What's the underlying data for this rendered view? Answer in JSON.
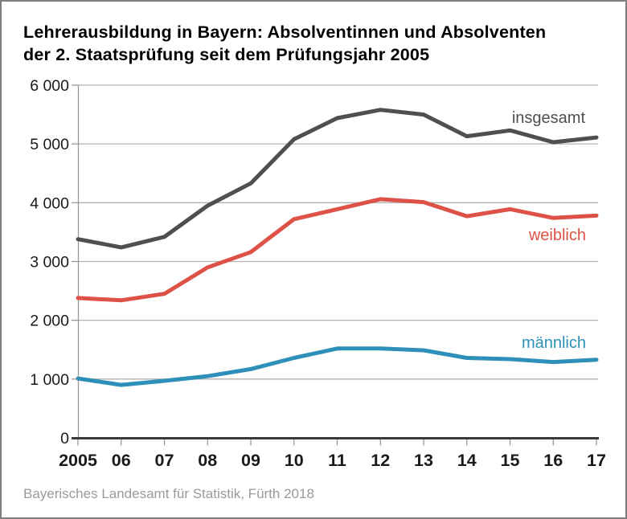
{
  "header": {
    "title_line1": "Lehrerausbildung in Bayern: Absolventinnen und Absolventen",
    "title_line2": "der 2. Staatsprüfung seit dem Prüfungsjahr 2005"
  },
  "footer": {
    "source": "Bayerisches Landesamt für Statistik, Fürth 2018"
  },
  "chart_data": {
    "type": "line",
    "title": "Lehrerausbildung in Bayern: Absolventinnen und Absolventen der 2. Staatsprüfung seit dem Prüfungsjahr 2005",
    "categories": [
      "2005",
      "06",
      "07",
      "08",
      "09",
      "10",
      "11",
      "12",
      "13",
      "14",
      "15",
      "16",
      "17"
    ],
    "series": [
      {
        "name": "insgesamt",
        "color": "#4f4f4f",
        "values": [
          3380,
          3240,
          3420,
          3950,
          4330,
          5080,
          5440,
          5580,
          5500,
          5130,
          5230,
          5030,
          5110
        ]
      },
      {
        "name": "weiblich",
        "color": "#de5147",
        "values": [
          2380,
          2340,
          2450,
          2900,
          3160,
          3720,
          3890,
          4060,
          4010,
          3770,
          3890,
          3740,
          3780
        ]
      },
      {
        "name": "männlich",
        "color": "#2e90b8",
        "values": [
          1010,
          900,
          970,
          1050,
          1170,
          1360,
          1520,
          1520,
          1490,
          1360,
          1340,
          1290,
          1330
        ]
      }
    ],
    "xlabel": "",
    "ylabel": "",
    "ylim": [
      0,
      6000
    ],
    "ytick_interval": 1000,
    "ytick_labels": [
      "0",
      "1 000",
      "2 000",
      "3 000",
      "4 000",
      "5 000",
      "6 000"
    ],
    "grid": "horizontal",
    "legend_position": "inline-right-of-lines",
    "source": "Bayerisches Landesamt für Statistik, Fürth 2018"
  },
  "colors": {
    "grid_line": "#b3b3b3",
    "axis_line_dark": "#3a3a3a",
    "tick": "#999999",
    "axis_text": "#1a1a1a",
    "footer_text": "#9a9a9a",
    "frame_border": "#7f7f7f",
    "background": "#ffffff"
  }
}
